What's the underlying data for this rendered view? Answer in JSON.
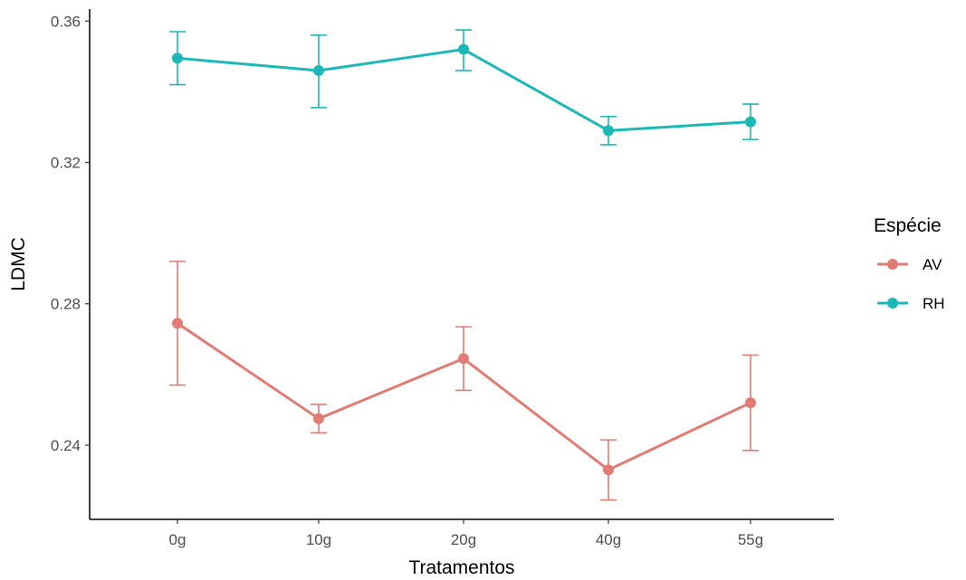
{
  "chart_data": {
    "type": "line",
    "title": "",
    "xlabel": "Tratamentos",
    "ylabel": "LDMC",
    "categories": [
      "0g",
      "10g",
      "20g",
      "40g",
      "55g"
    ],
    "ylim": [
      0.219,
      0.3634
    ],
    "yticks": [
      0.24,
      0.28,
      0.32,
      0.36
    ],
    "ytick_labels": [
      "0.24",
      "0.28",
      "0.32",
      "0.36"
    ],
    "grid": false,
    "legend": {
      "title": "Espécie",
      "position": "right"
    },
    "series": [
      {
        "name": "AV",
        "color": "#e07c73",
        "values": [
          0.2745,
          0.2475,
          0.2645,
          0.233,
          0.252
        ],
        "error_low": [
          0.257,
          0.2435,
          0.2555,
          0.2245,
          0.2385
        ],
        "error_high": [
          0.292,
          0.2515,
          0.2735,
          0.2415,
          0.2655
        ]
      },
      {
        "name": "RH",
        "color": "#1cb8b8",
        "values": [
          0.3495,
          0.346,
          0.352,
          0.329,
          0.3315
        ],
        "error_low": [
          0.342,
          0.3355,
          0.346,
          0.325,
          0.3265
        ],
        "error_high": [
          0.357,
          0.356,
          0.3575,
          0.333,
          0.3365
        ]
      }
    ]
  }
}
